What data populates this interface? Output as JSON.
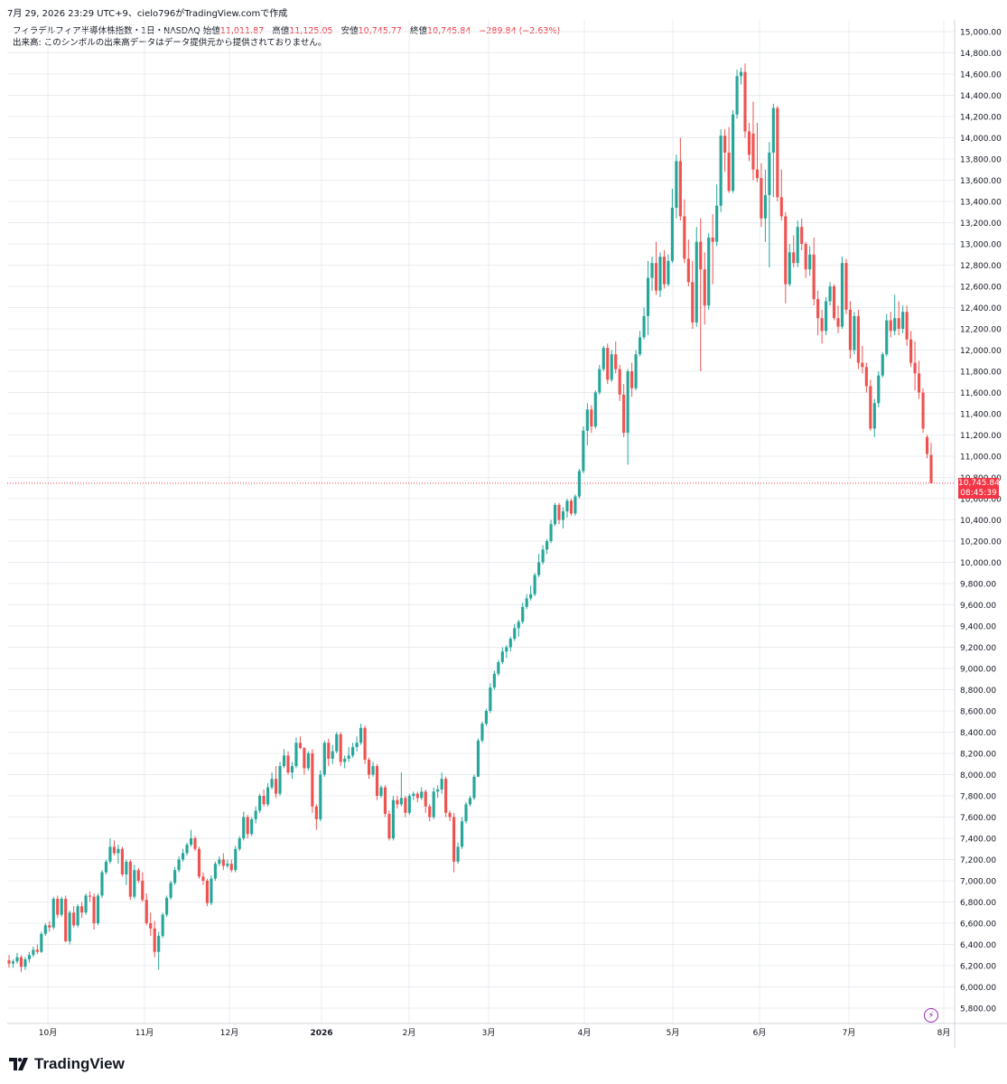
{
  "header": {
    "text": "7月 29, 2026 23:29 UTC+9、cielo796がTradingView.comで作成"
  },
  "legend": {
    "symbol": "フィラデルフィア半導体株指数・1日・NASDAQ",
    "open_label": "始値",
    "open": "11,011.87",
    "high_label": "高値",
    "high": "11,125.05",
    "low_label": "安値",
    "low": "10,745.77",
    "close_label": "終値",
    "close": "10,745.84",
    "change": "−289.84 (−2.63%)",
    "volume_note": "出来高: このシンボルの出来高データはデータ提供元から提供されておりません。"
  },
  "price_tag": {
    "price": "10,745.84",
    "countdown": "08:45:39"
  },
  "footer": {
    "brand": "TradingView"
  },
  "colors": {
    "up": "#26a69a",
    "down": "#ef5350",
    "grid": "#e8ecf0",
    "last_price": "#f23645",
    "lightning": "#9c27b0"
  },
  "icons": {
    "lightning": "lightning-icon",
    "logo": "tradingview-logo-icon"
  },
  "chart_data": {
    "type": "candlestick",
    "title": "フィラデルフィア半導体株指数・1日・NASDAQ",
    "y_axis": {
      "side": "right",
      "ylim": [
        5700,
        15100
      ],
      "ticks": [
        "5,800.00",
        "6,000.00",
        "6,200.00",
        "6,400.00",
        "6,600.00",
        "6,800.00",
        "7,000.00",
        "7,200.00",
        "7,400.00",
        "7,600.00",
        "7,800.00",
        "8,000.00",
        "8,200.00",
        "8,400.00",
        "8,600.00",
        "8,800.00",
        "9,000.00",
        "9,200.00",
        "9,400.00",
        "9,600.00",
        "9,800.00",
        "10,000.00",
        "10,200.00",
        "10,400.00",
        "10,600.00",
        "10,800.00",
        "11,000.00",
        "11,200.00",
        "11,400.00",
        "11,600.00",
        "11,800.00",
        "12,000.00",
        "12,200.00",
        "12,400.00",
        "12,600.00",
        "12,800.00",
        "13,000.00",
        "13,200.00",
        "13,400.00",
        "13,600.00",
        "13,800.00",
        "14,000.00",
        "14,200.00",
        "14,400.00",
        "14,600.00",
        "14,800.00",
        "15,000.00"
      ]
    },
    "x_axis": {
      "labels": [
        "10月",
        "11月",
        "12月",
        "2026",
        "2月",
        "3月",
        "4月",
        "5月",
        "6月",
        "7月",
        "8月"
      ]
    },
    "last_price": 10745.84,
    "grid": true,
    "candles": [
      [
        6250,
        6300,
        6180,
        6220
      ],
      [
        6220,
        6260,
        6180,
        6240
      ],
      [
        6240,
        6320,
        6220,
        6280
      ],
      [
        6280,
        6300,
        6140,
        6190
      ],
      [
        6190,
        6280,
        6160,
        6260
      ],
      [
        6260,
        6330,
        6230,
        6300
      ],
      [
        6300,
        6380,
        6280,
        6350
      ],
      [
        6350,
        6400,
        6310,
        6330
      ],
      [
        6330,
        6520,
        6320,
        6500
      ],
      [
        6500,
        6600,
        6480,
        6580
      ],
      [
        6580,
        6620,
        6520,
        6560
      ],
      [
        6560,
        6850,
        6540,
        6830
      ],
      [
        6830,
        6860,
        6650,
        6680
      ],
      [
        6680,
        6850,
        6660,
        6830
      ],
      [
        6830,
        6860,
        6420,
        6430
      ],
      [
        6430,
        6720,
        6400,
        6700
      ],
      [
        6700,
        6760,
        6560,
        6580
      ],
      [
        6580,
        6780,
        6560,
        6760
      ],
      [
        6760,
        6800,
        6650,
        6700
      ],
      [
        6700,
        6880,
        6680,
        6860
      ],
      [
        6860,
        6900,
        6800,
        6850
      ],
      [
        6850,
        6880,
        6540,
        6600
      ],
      [
        6600,
        6880,
        6580,
        6860
      ],
      [
        6860,
        7100,
        6840,
        7080
      ],
      [
        7080,
        7200,
        7060,
        7180
      ],
      [
        7180,
        7400,
        7160,
        7320
      ],
      [
        7320,
        7380,
        7240,
        7260
      ],
      [
        7260,
        7340,
        7160,
        7300
      ],
      [
        7300,
        7320,
        7040,
        7060
      ],
      [
        7060,
        7200,
        6960,
        7180
      ],
      [
        7180,
        7200,
        6820,
        6850
      ],
      [
        6850,
        7150,
        6830,
        7100
      ],
      [
        7100,
        7120,
        6980,
        7000
      ],
      [
        7000,
        7080,
        6800,
        6820
      ],
      [
        6820,
        6880,
        6580,
        6600
      ],
      [
        6600,
        6700,
        6480,
        6550
      ],
      [
        6550,
        6620,
        6280,
        6330
      ],
      [
        6330,
        6520,
        6160,
        6480
      ],
      [
        6480,
        6700,
        6460,
        6680
      ],
      [
        6680,
        6860,
        6660,
        6840
      ],
      [
        6840,
        7000,
        6820,
        6980
      ],
      [
        6980,
        7130,
        6960,
        7100
      ],
      [
        7100,
        7230,
        7080,
        7200
      ],
      [
        7200,
        7300,
        7180,
        7260
      ],
      [
        7260,
        7360,
        7240,
        7340
      ],
      [
        7340,
        7480,
        7320,
        7400
      ],
      [
        7400,
        7420,
        7280,
        7300
      ],
      [
        7300,
        7320,
        7020,
        7040
      ],
      [
        7040,
        7080,
        6960,
        7000
      ],
      [
        7000,
        7020,
        6760,
        6790
      ],
      [
        6790,
        7050,
        6770,
        7020
      ],
      [
        7020,
        7180,
        7000,
        7160
      ],
      [
        7160,
        7230,
        7140,
        7200
      ],
      [
        7200,
        7260,
        7100,
        7140
      ],
      [
        7140,
        7200,
        7120,
        7160
      ],
      [
        7160,
        7200,
        7080,
        7100
      ],
      [
        7100,
        7330,
        7080,
        7300
      ],
      [
        7300,
        7420,
        7280,
        7400
      ],
      [
        7400,
        7650,
        7380,
        7600
      ],
      [
        7600,
        7620,
        7400,
        7440
      ],
      [
        7440,
        7600,
        7420,
        7580
      ],
      [
        7580,
        7700,
        7540,
        7660
      ],
      [
        7660,
        7820,
        7640,
        7800
      ],
      [
        7800,
        7860,
        7700,
        7720
      ],
      [
        7720,
        7920,
        7700,
        7880
      ],
      [
        7880,
        8020,
        7860,
        7960
      ],
      [
        7960,
        8080,
        7780,
        7820
      ],
      [
        7820,
        8120,
        7800,
        8080
      ],
      [
        8080,
        8240,
        8060,
        8180
      ],
      [
        8180,
        8220,
        8000,
        8020
      ],
      [
        8020,
        8120,
        7960,
        8080
      ],
      [
        8080,
        8350,
        8060,
        8300
      ],
      [
        8300,
        8360,
        8240,
        8250
      ],
      [
        8250,
        8260,
        8000,
        8060
      ],
      [
        8060,
        8220,
        8040,
        8200
      ],
      [
        8200,
        8240,
        7640,
        7700
      ],
      [
        7700,
        7720,
        7480,
        7580
      ],
      [
        7580,
        8040,
        7560,
        8000
      ],
      [
        8000,
        8320,
        7980,
        8300
      ],
      [
        8300,
        8340,
        8080,
        8150
      ],
      [
        8150,
        8280,
        8100,
        8220
      ],
      [
        8220,
        8400,
        8200,
        8380
      ],
      [
        8380,
        8400,
        8080,
        8120
      ],
      [
        8120,
        8180,
        8060,
        8150
      ],
      [
        8150,
        8260,
        8120,
        8180
      ],
      [
        8180,
        8300,
        8160,
        8260
      ],
      [
        8260,
        8360,
        8220,
        8300
      ],
      [
        8300,
        8480,
        8280,
        8440
      ],
      [
        8440,
        8460,
        8100,
        8140
      ],
      [
        8140,
        8160,
        7960,
        8000
      ],
      [
        8000,
        8120,
        7980,
        8080
      ],
      [
        8080,
        8100,
        7760,
        7800
      ],
      [
        7800,
        7900,
        7780,
        7880
      ],
      [
        7880,
        7900,
        7600,
        7630
      ],
      [
        7630,
        7660,
        7380,
        7400
      ],
      [
        7400,
        7800,
        7380,
        7760
      ],
      [
        7760,
        7800,
        7680,
        7720
      ],
      [
        7720,
        8020,
        7700,
        7780
      ],
      [
        7780,
        7800,
        7600,
        7640
      ],
      [
        7640,
        7820,
        7620,
        7800
      ],
      [
        7800,
        7840,
        7760,
        7820
      ],
      [
        7820,
        7840,
        7740,
        7780
      ],
      [
        7780,
        7880,
        7760,
        7840
      ],
      [
        7840,
        7860,
        7640,
        7700
      ],
      [
        7700,
        7720,
        7560,
        7600
      ],
      [
        7600,
        7880,
        7580,
        7840
      ],
      [
        7840,
        7900,
        7780,
        7860
      ],
      [
        7860,
        8020,
        7820,
        7960
      ],
      [
        7960,
        7980,
        7600,
        7640
      ],
      [
        7640,
        7660,
        7560,
        7600
      ],
      [
        7600,
        7640,
        7080,
        7180
      ],
      [
        7180,
        7360,
        7160,
        7320
      ],
      [
        7320,
        7600,
        7300,
        7560
      ],
      [
        7560,
        7740,
        7540,
        7720
      ],
      [
        7720,
        7800,
        7700,
        7780
      ],
      [
        7780,
        8000,
        7760,
        7980
      ],
      [
        7980,
        8340,
        7980,
        8320
      ],
      [
        8320,
        8500,
        8300,
        8480
      ],
      [
        8480,
        8620,
        8460,
        8600
      ],
      [
        8600,
        8860,
        8580,
        8820
      ],
      [
        8820,
        8980,
        8800,
        8950
      ],
      [
        8950,
        9080,
        8930,
        9060
      ],
      [
        9060,
        9200,
        9040,
        9160
      ],
      [
        9160,
        9220,
        9100,
        9200
      ],
      [
        9200,
        9300,
        9160,
        9280
      ],
      [
        9280,
        9420,
        9260,
        9380
      ],
      [
        9380,
        9460,
        9300,
        9440
      ],
      [
        9440,
        9620,
        9420,
        9580
      ],
      [
        9580,
        9700,
        9560,
        9660
      ],
      [
        9660,
        9780,
        9640,
        9700
      ],
      [
        9700,
        9900,
        9680,
        9880
      ],
      [
        9880,
        10080,
        9860,
        10000
      ],
      [
        10000,
        10160,
        9980,
        10120
      ],
      [
        10120,
        10220,
        10080,
        10200
      ],
      [
        10200,
        10400,
        10180,
        10360
      ],
      [
        10360,
        10560,
        10340,
        10540
      ],
      [
        10540,
        10560,
        10360,
        10400
      ],
      [
        10400,
        10520,
        10320,
        10480
      ],
      [
        10480,
        10600,
        10420,
        10580
      ],
      [
        10580,
        10600,
        10440,
        10460
      ],
      [
        10460,
        10640,
        10440,
        10620
      ],
      [
        10620,
        10880,
        10600,
        10860
      ],
      [
        10860,
        11280,
        10840,
        11240
      ],
      [
        11240,
        11500,
        11100,
        11440
      ],
      [
        11440,
        11480,
        11220,
        11280
      ],
      [
        11280,
        11620,
        11260,
        11600
      ],
      [
        11600,
        11860,
        11580,
        11820
      ],
      [
        11820,
        12040,
        11800,
        12020
      ],
      [
        12020,
        12060,
        11680,
        11720
      ],
      [
        11720,
        12000,
        11700,
        11960
      ],
      [
        11960,
        12080,
        11780,
        11820
      ],
      [
        11820,
        11860,
        11520,
        11580
      ],
      [
        11580,
        11680,
        11180,
        11220
      ],
      [
        11220,
        11820,
        10920,
        11800
      ],
      [
        11800,
        11880,
        11560,
        11640
      ],
      [
        11640,
        12000,
        11620,
        11960
      ],
      [
        11960,
        12180,
        11940,
        12120
      ],
      [
        12120,
        12400,
        12100,
        12320
      ],
      [
        12320,
        12840,
        12140,
        12680
      ],
      [
        12680,
        12880,
        12560,
        12820
      ],
      [
        12820,
        13020,
        12520,
        12560
      ],
      [
        12560,
        12920,
        12500,
        12880
      ],
      [
        12880,
        12940,
        12580,
        12620
      ],
      [
        12620,
        12900,
        12600,
        12840
      ],
      [
        12840,
        13520,
        12820,
        13340
      ],
      [
        13340,
        13840,
        13240,
        13780
      ],
      [
        13780,
        14000,
        13220,
        13260
      ],
      [
        13260,
        13420,
        12820,
        12860
      ],
      [
        12860,
        13040,
        12600,
        12640
      ],
      [
        12640,
        12840,
        12200,
        12260
      ],
      [
        12260,
        13160,
        12220,
        13020
      ],
      [
        13020,
        13240,
        11800,
        12760
      ],
      [
        12760,
        12920,
        12240,
        12420
      ],
      [
        12420,
        13100,
        12380,
        13060
      ],
      [
        13060,
        13280,
        12620,
        13020
      ],
      [
        13020,
        13560,
        12980,
        13360
      ],
      [
        13360,
        14080,
        13300,
        14020
      ],
      [
        14020,
        14080,
        13680,
        13860
      ],
      [
        13860,
        14100,
        13480,
        13500
      ],
      [
        13500,
        14260,
        13480,
        14220
      ],
      [
        14220,
        14640,
        14180,
        14580
      ],
      [
        14580,
        14660,
        14500,
        14620
      ],
      [
        14620,
        14700,
        14000,
        14060
      ],
      [
        14060,
        14140,
        13780,
        13840
      ],
      [
        14040,
        14340,
        13600,
        13700
      ],
      [
        13700,
        14140,
        13580,
        13620
      ],
      [
        13620,
        13760,
        13160,
        13240
      ],
      [
        13240,
        13700,
        13020,
        13460
      ],
      [
        13460,
        13960,
        12780,
        13860
      ],
      [
        13860,
        14320,
        13440,
        14280
      ],
      [
        14280,
        14300,
        13400,
        13440
      ],
      [
        13440,
        13700,
        13220,
        13260
      ],
      [
        13260,
        13300,
        12440,
        12620
      ],
      [
        12620,
        13000,
        12600,
        12920
      ],
      [
        12920,
        13080,
        12780,
        12820
      ],
      [
        12820,
        13220,
        12780,
        13160
      ],
      [
        13160,
        13240,
        12940,
        13000
      ],
      [
        13000,
        13020,
        12680,
        12760
      ],
      [
        12760,
        12980,
        12700,
        12900
      ],
      [
        12900,
        13060,
        12420,
        12480
      ],
      [
        12480,
        12560,
        12140,
        12300
      ],
      [
        12300,
        12380,
        12060,
        12180
      ],
      [
        12180,
        12500,
        12140,
        12460
      ],
      [
        12460,
        12640,
        12420,
        12600
      ],
      [
        12600,
        12620,
        12280,
        12300
      ],
      [
        12300,
        12420,
        12160,
        12220
      ],
      [
        12220,
        12880,
        12200,
        12820
      ],
      [
        12820,
        12860,
        12340,
        12380
      ],
      [
        12380,
        12460,
        11920,
        12000
      ],
      [
        12000,
        12360,
        11960,
        12320
      ],
      [
        12320,
        12380,
        11820,
        11880
      ],
      [
        11880,
        12040,
        11780,
        11840
      ],
      [
        11840,
        11880,
        11600,
        11660
      ],
      [
        11660,
        11720,
        11240,
        11260
      ],
      [
        11260,
        11540,
        11180,
        11500
      ],
      [
        11500,
        11800,
        11460,
        11760
      ],
      [
        11760,
        11980,
        11740,
        11960
      ],
      [
        11960,
        12340,
        11940,
        12280
      ],
      [
        12280,
        12360,
        12120,
        12180
      ],
      [
        12180,
        12520,
        12140,
        12300
      ],
      [
        12300,
        12460,
        12140,
        12200
      ],
      [
        12200,
        12420,
        12160,
        12360
      ],
      [
        12360,
        12420,
        12040,
        12100
      ],
      [
        12100,
        12180,
        11840,
        11880
      ],
      [
        11880,
        12080,
        11620,
        11780
      ],
      [
        11780,
        11900,
        11540,
        11600
      ],
      [
        11600,
        11640,
        11220,
        11260
      ],
      [
        11180,
        11200,
        10980,
        11020
      ],
      [
        11011.87,
        11125.05,
        10745.77,
        10745.84
      ]
    ]
  }
}
